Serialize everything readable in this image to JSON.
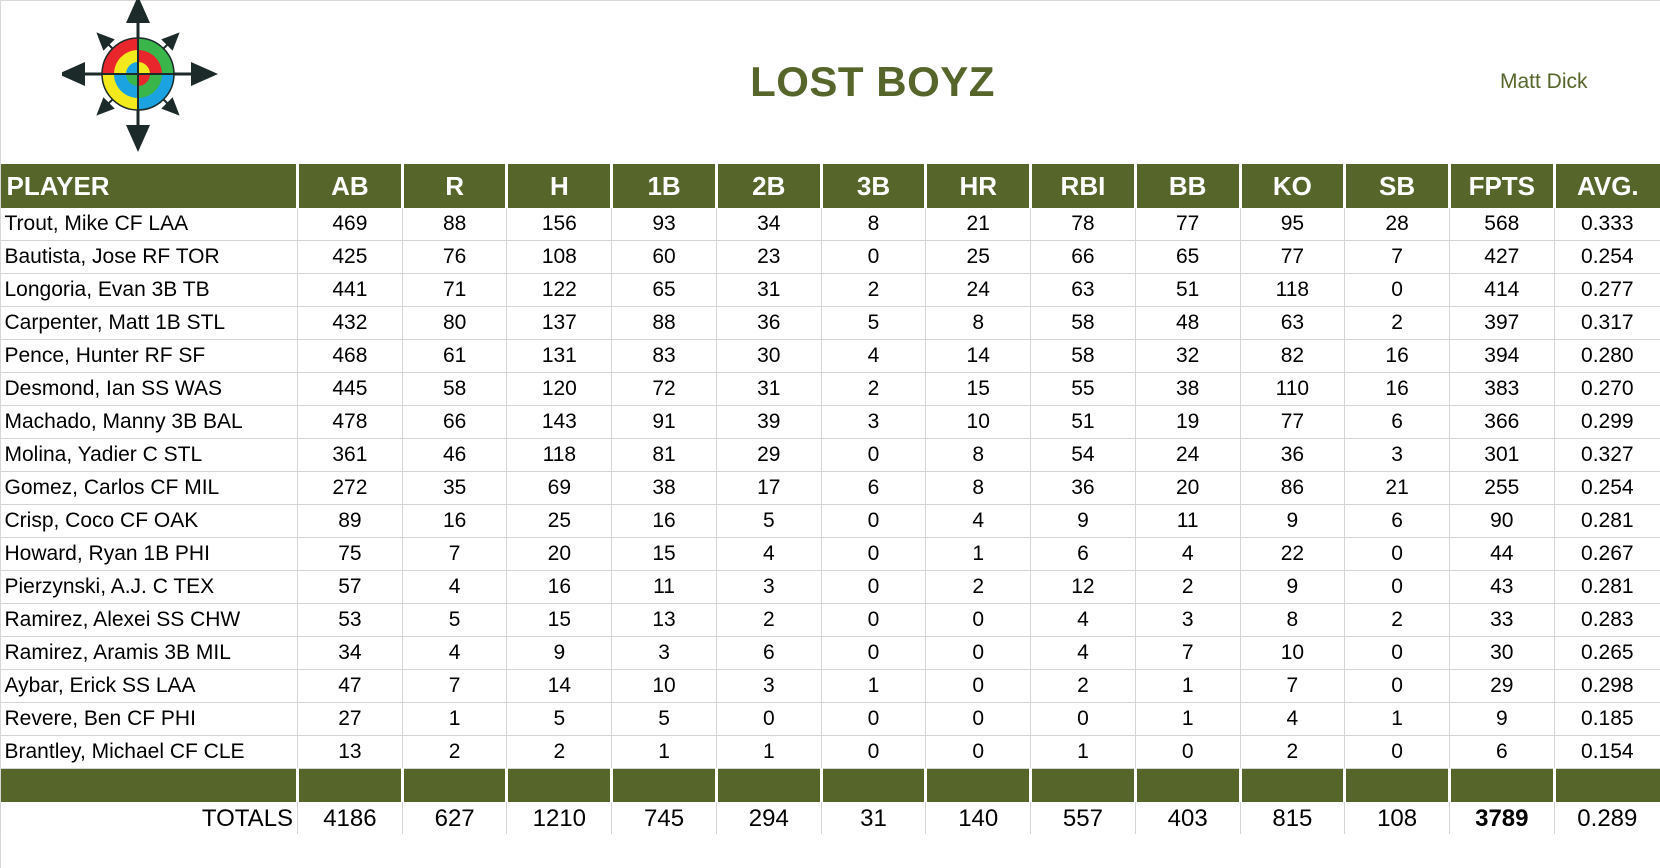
{
  "team_name": "LOST BOYZ",
  "owner_name": "Matt Dick",
  "columns": [
    "PLAYER",
    "AB",
    "R",
    "H",
    "1B",
    "2B",
    "3B",
    "HR",
    "RBI",
    "BB",
    "KO",
    "SB",
    "FPTS",
    "AVG."
  ],
  "players": [
    [
      "Trout, Mike CF LAA",
      "469",
      "88",
      "156",
      "93",
      "34",
      "8",
      "21",
      "78",
      "77",
      "95",
      "28",
      "568",
      "0.333"
    ],
    [
      "Bautista, Jose RF TOR",
      "425",
      "76",
      "108",
      "60",
      "23",
      "0",
      "25",
      "66",
      "65",
      "77",
      "7",
      "427",
      "0.254"
    ],
    [
      "Longoria, Evan 3B TB",
      "441",
      "71",
      "122",
      "65",
      "31",
      "2",
      "24",
      "63",
      "51",
      "118",
      "0",
      "414",
      "0.277"
    ],
    [
      "Carpenter, Matt 1B STL",
      "432",
      "80",
      "137",
      "88",
      "36",
      "5",
      "8",
      "58",
      "48",
      "63",
      "2",
      "397",
      "0.317"
    ],
    [
      "Pence, Hunter RF SF",
      "468",
      "61",
      "131",
      "83",
      "30",
      "4",
      "14",
      "58",
      "32",
      "82",
      "16",
      "394",
      "0.280"
    ],
    [
      "Desmond, Ian SS WAS",
      "445",
      "58",
      "120",
      "72",
      "31",
      "2",
      "15",
      "55",
      "38",
      "110",
      "16",
      "383",
      "0.270"
    ],
    [
      "Machado, Manny 3B BAL",
      "478",
      "66",
      "143",
      "91",
      "39",
      "3",
      "10",
      "51",
      "19",
      "77",
      "6",
      "366",
      "0.299"
    ],
    [
      "Molina, Yadier C STL",
      "361",
      "46",
      "118",
      "81",
      "29",
      "0",
      "8",
      "54",
      "24",
      "36",
      "3",
      "301",
      "0.327"
    ],
    [
      "Gomez, Carlos CF MIL",
      "272",
      "35",
      "69",
      "38",
      "17",
      "6",
      "8",
      "36",
      "20",
      "86",
      "21",
      "255",
      "0.254"
    ],
    [
      "Crisp, Coco CF OAK",
      "89",
      "16",
      "25",
      "16",
      "5",
      "0",
      "4",
      "9",
      "11",
      "9",
      "6",
      "90",
      "0.281"
    ],
    [
      "Howard, Ryan 1B PHI",
      "75",
      "7",
      "20",
      "15",
      "4",
      "0",
      "1",
      "6",
      "4",
      "22",
      "0",
      "44",
      "0.267"
    ],
    [
      "Pierzynski, A.J. C TEX",
      "57",
      "4",
      "16",
      "11",
      "3",
      "0",
      "2",
      "12",
      "2",
      "9",
      "0",
      "43",
      "0.281"
    ],
    [
      "Ramirez, Alexei SS CHW",
      "53",
      "5",
      "15",
      "13",
      "2",
      "0",
      "0",
      "4",
      "3",
      "8",
      "2",
      "33",
      "0.283"
    ],
    [
      "Ramirez, Aramis 3B MIL",
      "34",
      "4",
      "9",
      "3",
      "6",
      "0",
      "0",
      "4",
      "7",
      "10",
      "0",
      "30",
      "0.265"
    ],
    [
      "Aybar, Erick SS LAA",
      "47",
      "7",
      "14",
      "10",
      "3",
      "1",
      "0",
      "2",
      "1",
      "7",
      "0",
      "29",
      "0.298"
    ],
    [
      "Revere, Ben CF PHI",
      "27",
      "1",
      "5",
      "5",
      "0",
      "0",
      "0",
      "0",
      "1",
      "4",
      "1",
      "9",
      "0.185"
    ],
    [
      "Brantley, Michael CF CLE",
      "13",
      "2",
      "2",
      "1",
      "1",
      "0",
      "0",
      "1",
      "0",
      "2",
      "0",
      "6",
      "0.154"
    ]
  ],
  "totals": {
    "label": "TOTALS",
    "values": [
      "4186",
      "627",
      "1210",
      "745",
      "294",
      "31",
      "140",
      "557",
      "403",
      "815",
      "108",
      "3789",
      "0.289"
    ]
  },
  "colors": {
    "header_green": "#56662b",
    "title_green": "#56662b",
    "logo_red": "#e8262b",
    "logo_yellow": "#f2ea1d",
    "logo_blue": "#1aa3e0",
    "logo_green": "#39b54a"
  },
  "icons": {
    "logo": "compass-rose-icon"
  }
}
